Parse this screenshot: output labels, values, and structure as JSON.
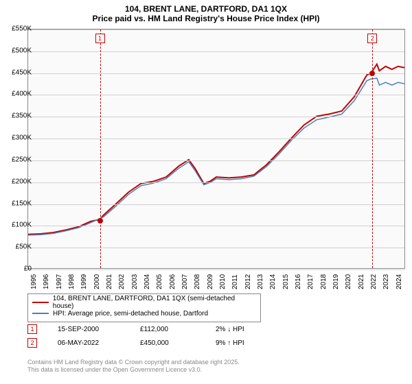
{
  "title_line1": "104, BRENT LANE, DARTFORD, DA1 1QX",
  "title_line2": "Price paid vs. HM Land Registry's House Price Index (HPI)",
  "title_fontsize": 12,
  "chart": {
    "type": "line",
    "background_color": "#fafafa",
    "grid_color": "#d0d0d0",
    "border_color": "#888888",
    "x_axis": {
      "min_year": 1995,
      "max_year": 2025,
      "ticks": [
        1995,
        1996,
        1997,
        1998,
        1999,
        2000,
        2001,
        2002,
        2003,
        2004,
        2005,
        2006,
        2007,
        2008,
        2009,
        2010,
        2011,
        2012,
        2013,
        2014,
        2015,
        2016,
        2017,
        2018,
        2019,
        2020,
        2021,
        2022,
        2023,
        2024
      ],
      "label_fontsize": 10
    },
    "y_axis": {
      "min": 0,
      "max": 550,
      "ticks": [
        0,
        50,
        100,
        150,
        200,
        250,
        300,
        350,
        400,
        450,
        500,
        550
      ],
      "tick_labels": [
        "£0",
        "£50K",
        "£100K",
        "£150K",
        "£200K",
        "£250K",
        "£300K",
        "£350K",
        "£400K",
        "£450K",
        "£500K",
        "£550K"
      ],
      "label_fontsize": 10
    },
    "series": [
      {
        "name": "104, BRENT LANE, DARTFORD, DA1 1QX (semi-detached house)",
        "color": "#c00000",
        "line_width": 2,
        "points": [
          [
            1995,
            78
          ],
          [
            1996,
            79
          ],
          [
            1997,
            82
          ],
          [
            1998,
            88
          ],
          [
            1999,
            95
          ],
          [
            2000,
            108
          ],
          [
            2000.7,
            112
          ],
          [
            2001,
            122
          ],
          [
            2002,
            148
          ],
          [
            2003,
            175
          ],
          [
            2004,
            195
          ],
          [
            2005,
            200
          ],
          [
            2006,
            210
          ],
          [
            2007,
            235
          ],
          [
            2007.8,
            250
          ],
          [
            2008.3,
            230
          ],
          [
            2009,
            195
          ],
          [
            2009.5,
            200
          ],
          [
            2010,
            210
          ],
          [
            2011,
            208
          ],
          [
            2012,
            210
          ],
          [
            2013,
            215
          ],
          [
            2014,
            238
          ],
          [
            2015,
            268
          ],
          [
            2016,
            300
          ],
          [
            2017,
            330
          ],
          [
            2018,
            350
          ],
          [
            2019,
            355
          ],
          [
            2020,
            362
          ],
          [
            2021,
            395
          ],
          [
            2022,
            445
          ],
          [
            2022.35,
            450
          ],
          [
            2022.8,
            470
          ],
          [
            2023,
            455
          ],
          [
            2023.5,
            465
          ],
          [
            2024,
            458
          ],
          [
            2024.5,
            465
          ],
          [
            2025,
            462
          ]
        ]
      },
      {
        "name": "HPI: Average price, semi-detached house, Dartford",
        "color": "#4a7ebb",
        "line_width": 1.5,
        "points": [
          [
            1995,
            76
          ],
          [
            1996,
            77
          ],
          [
            1997,
            80
          ],
          [
            1998,
            86
          ],
          [
            1999,
            93
          ],
          [
            2000,
            105
          ],
          [
            2001,
            118
          ],
          [
            2002,
            143
          ],
          [
            2003,
            170
          ],
          [
            2004,
            190
          ],
          [
            2005,
            196
          ],
          [
            2006,
            206
          ],
          [
            2007,
            230
          ],
          [
            2007.8,
            245
          ],
          [
            2008.3,
            225
          ],
          [
            2009,
            192
          ],
          [
            2009.5,
            197
          ],
          [
            2010,
            206
          ],
          [
            2011,
            204
          ],
          [
            2012,
            206
          ],
          [
            2013,
            212
          ],
          [
            2014,
            234
          ],
          [
            2015,
            263
          ],
          [
            2016,
            295
          ],
          [
            2017,
            323
          ],
          [
            2018,
            342
          ],
          [
            2019,
            348
          ],
          [
            2020,
            355
          ],
          [
            2021,
            386
          ],
          [
            2022,
            432
          ],
          [
            2022.35,
            436
          ],
          [
            2022.8,
            438
          ],
          [
            2023,
            422
          ],
          [
            2023.5,
            428
          ],
          [
            2024,
            422
          ],
          [
            2024.5,
            428
          ],
          [
            2025,
            425
          ]
        ]
      }
    ],
    "sale_markers": [
      {
        "n": "1",
        "year": 2000.7,
        "price": 112,
        "color": "#c00000"
      },
      {
        "n": "2",
        "year": 2022.35,
        "price": 450,
        "color": "#c00000"
      }
    ]
  },
  "legend": {
    "items": [
      {
        "label": "104, BRENT LANE, DARTFORD, DA1 1QX (semi-detached house)",
        "color": "#c00000",
        "thickness": 2
      },
      {
        "label": "HPI: Average price, semi-detached house, Dartford",
        "color": "#4a7ebb",
        "thickness": 1.5
      }
    ]
  },
  "sales_table": [
    {
      "n": "1",
      "color": "#c00000",
      "date": "15-SEP-2000",
      "price": "£112,000",
      "hpi": "2% ↓ HPI"
    },
    {
      "n": "2",
      "color": "#c00000",
      "date": "06-MAY-2022",
      "price": "£450,000",
      "hpi": "9% ↑ HPI"
    }
  ],
  "footer_line1": "Contains HM Land Registry data © Crown copyright and database right 2025.",
  "footer_line2": "This data is licensed under the Open Government Licence v3.0."
}
